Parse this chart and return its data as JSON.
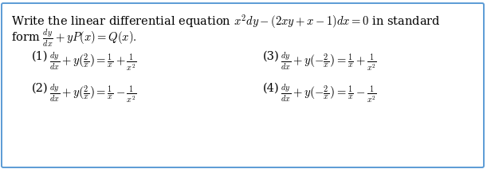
{
  "bg_color": "#ffffff",
  "border_color": "#5b9bd5",
  "title_line1": "Write the linear differential equation $x^2dy - (2xy + x - 1)dx = 0$ in standard",
  "title_line2": "form $\\frac{dy}{dx} + yP(x) = Q(x).$",
  "options": [
    {
      "label": "(1)",
      "expr": "$\\frac{dy}{dx} + y\\left(\\frac{2}{x}\\right) = \\frac{1}{x} + \\frac{1}{x^2}$"
    },
    {
      "label": "(2)",
      "expr": "$\\frac{dy}{dx} + y\\left(\\frac{2}{x}\\right) = \\frac{1}{x} - \\frac{1}{x^2}$"
    },
    {
      "label": "(3)",
      "expr": "$\\frac{dy}{dx} + y\\left(-\\frac{2}{x}\\right) = \\frac{1}{x} + \\frac{1}{x^2}$"
    },
    {
      "label": "(4)",
      "expr": "$\\frac{dy}{dx} + y\\left(-\\frac{2}{x}\\right) = \\frac{1}{x} - \\frac{1}{x^2}$"
    }
  ],
  "title_fs": 10.5,
  "opt_fs": 10.5,
  "border_lw": 1.4,
  "border_color_hex": "#5b9bd5"
}
